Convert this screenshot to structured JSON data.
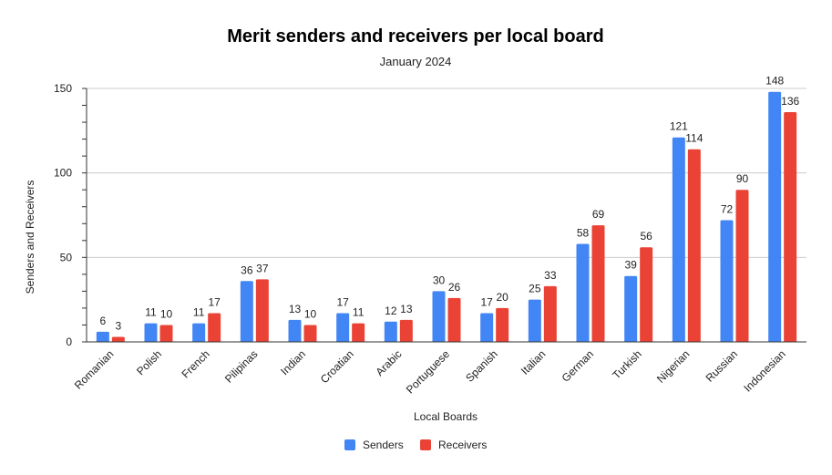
{
  "chart_data": {
    "type": "bar",
    "title": "Merit senders and receivers per local board",
    "subtitle": "January 2024",
    "xlabel": "Local Boards",
    "ylabel": "Senders and Receivers",
    "ylim": [
      0,
      150
    ],
    "yticks": [
      0,
      50,
      100,
      150
    ],
    "grid": true,
    "legend_position": "bottom",
    "categories": [
      "Romanian",
      "Polish",
      "French",
      "Pilipinas",
      "Indian",
      "Croatian",
      "Arabic",
      "Portuguese",
      "Spanish",
      "Italian",
      "German",
      "Turkish",
      "Nigerian",
      "Russian",
      "Indonesian"
    ],
    "series": [
      {
        "name": "Senders",
        "color": "#4285f4",
        "values": [
          6,
          11,
          11,
          36,
          13,
          17,
          12,
          30,
          17,
          25,
          58,
          39,
          121,
          72,
          148
        ]
      },
      {
        "name": "Receivers",
        "color": "#ea4335",
        "values": [
          3,
          10,
          17,
          37,
          10,
          11,
          13,
          26,
          20,
          33,
          69,
          56,
          114,
          90,
          136
        ]
      }
    ]
  }
}
